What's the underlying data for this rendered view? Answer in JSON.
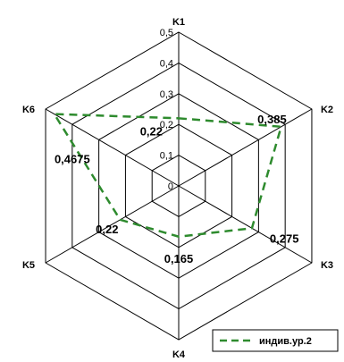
{
  "chart_data": {
    "type": "radar",
    "axes": [
      "K1",
      "K2",
      "K3",
      "K4",
      "K5",
      "K6"
    ],
    "ticks": [
      "0",
      "0,1",
      "0,2",
      "0,3",
      "0,4",
      "0,5"
    ],
    "range": [
      0,
      0.5
    ],
    "series": [
      {
        "name": "индив.ур.2",
        "values": [
          0.22,
          0.385,
          0.275,
          0.165,
          0.22,
          0.4675
        ],
        "value_labels": [
          "0,22",
          "0,385",
          "0,275",
          "0,165",
          "0,22",
          "0,4675"
        ],
        "color": "#2e8b2e",
        "style": "dashed"
      }
    ],
    "legend_position": "bottom-right",
    "grid": true
  }
}
